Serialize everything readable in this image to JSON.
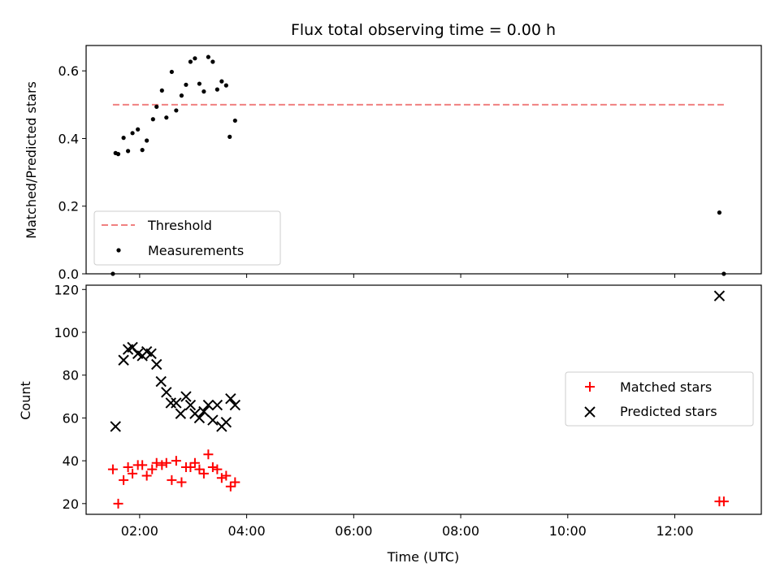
{
  "title": "Flux total observing time = 0.00 h",
  "chart_data": [
    {
      "type": "scatter",
      "ylabel": "Matched/Predicted stars",
      "xlim": [
        "01:00",
        "13:37"
      ],
      "ylim": [
        0,
        0.675
      ],
      "yticks": [
        0.0,
        0.2,
        0.4,
        0.6
      ],
      "ytick_labels": [
        "0.0",
        "0.2",
        "0.4",
        "0.6"
      ],
      "legend_position": "lower-left",
      "threshold": {
        "name": "Threshold",
        "value": 0.5,
        "x_range": [
          "01:30",
          "12:55"
        ],
        "color": "#f08080",
        "style": "dashed"
      },
      "series": [
        {
          "name": "Measurements",
          "marker": "dot",
          "color": "#000000",
          "points": [
            {
              "x": "01:30",
              "y": 0.0
            },
            {
              "x": "01:33",
              "y": 0.357
            },
            {
              "x": "01:36",
              "y": 0.354
            },
            {
              "x": "01:42",
              "y": 0.402
            },
            {
              "x": "01:47",
              "y": 0.363
            },
            {
              "x": "01:52",
              "y": 0.416
            },
            {
              "x": "01:58",
              "y": 0.427
            },
            {
              "x": "02:03",
              "y": 0.366
            },
            {
              "x": "02:08",
              "y": 0.394
            },
            {
              "x": "02:15",
              "y": 0.457
            },
            {
              "x": "02:19",
              "y": 0.494
            },
            {
              "x": "02:25",
              "y": 0.542
            },
            {
              "x": "02:30",
              "y": 0.462
            },
            {
              "x": "02:36",
              "y": 0.597
            },
            {
              "x": "02:41",
              "y": 0.483
            },
            {
              "x": "02:47",
              "y": 0.527
            },
            {
              "x": "02:52",
              "y": 0.559
            },
            {
              "x": "02:57",
              "y": 0.627
            },
            {
              "x": "03:02",
              "y": 0.637
            },
            {
              "x": "03:07",
              "y": 0.562
            },
            {
              "x": "03:12",
              "y": 0.539
            },
            {
              "x": "03:17",
              "y": 0.641
            },
            {
              "x": "03:22",
              "y": 0.627
            },
            {
              "x": "03:27",
              "y": 0.545
            },
            {
              "x": "03:32",
              "y": 0.569
            },
            {
              "x": "03:37",
              "y": 0.557
            },
            {
              "x": "03:41",
              "y": 0.405
            },
            {
              "x": "03:47",
              "y": 0.453
            },
            {
              "x": "12:50",
              "y": 0.181
            },
            {
              "x": "12:55",
              "y": 0.0
            }
          ]
        }
      ]
    },
    {
      "type": "scatter",
      "xlabel": "Time (UTC)",
      "ylabel": "Count",
      "xlim": [
        "01:00",
        "13:37"
      ],
      "ylim": [
        15,
        122
      ],
      "yticks": [
        20,
        40,
        60,
        80,
        100,
        120
      ],
      "xticks": [
        "02:00",
        "04:00",
        "06:00",
        "08:00",
        "10:00",
        "12:00"
      ],
      "legend_position": "center-right",
      "series": [
        {
          "name": "Matched stars",
          "marker": "plus",
          "color": "#ff0000",
          "points": [
            {
              "x": "01:30",
              "y": 36
            },
            {
              "x": "01:36",
              "y": 20
            },
            {
              "x": "01:42",
              "y": 31
            },
            {
              "x": "01:47",
              "y": 37
            },
            {
              "x": "01:52",
              "y": 34
            },
            {
              "x": "01:58",
              "y": 38
            },
            {
              "x": "02:03",
              "y": 38
            },
            {
              "x": "02:08",
              "y": 33
            },
            {
              "x": "02:14",
              "y": 36
            },
            {
              "x": "02:19",
              "y": 39
            },
            {
              "x": "02:25",
              "y": 38
            },
            {
              "x": "02:30",
              "y": 39
            },
            {
              "x": "02:36",
              "y": 31
            },
            {
              "x": "02:41",
              "y": 40
            },
            {
              "x": "02:47",
              "y": 30
            },
            {
              "x": "02:52",
              "y": 37
            },
            {
              "x": "02:57",
              "y": 37
            },
            {
              "x": "03:02",
              "y": 39
            },
            {
              "x": "03:07",
              "y": 36
            },
            {
              "x": "03:12",
              "y": 34
            },
            {
              "x": "03:17",
              "y": 43
            },
            {
              "x": "03:22",
              "y": 37
            },
            {
              "x": "03:27",
              "y": 36
            },
            {
              "x": "03:32",
              "y": 32
            },
            {
              "x": "03:37",
              "y": 33
            },
            {
              "x": "03:42",
              "y": 28
            },
            {
              "x": "03:47",
              "y": 30
            },
            {
              "x": "12:50",
              "y": 21
            },
            {
              "x": "12:55",
              "y": 21
            }
          ]
        },
        {
          "name": "Predicted stars",
          "marker": "x",
          "color": "#000000",
          "points": [
            {
              "x": "01:33",
              "y": 56
            },
            {
              "x": "01:42",
              "y": 87
            },
            {
              "x": "01:47",
              "y": 92
            },
            {
              "x": "01:52",
              "y": 93
            },
            {
              "x": "01:58",
              "y": 90
            },
            {
              "x": "02:03",
              "y": 89
            },
            {
              "x": "02:08",
              "y": 91
            },
            {
              "x": "02:13",
              "y": 90
            },
            {
              "x": "02:19",
              "y": 85
            },
            {
              "x": "02:24",
              "y": 77
            },
            {
              "x": "02:30",
              "y": 72
            },
            {
              "x": "02:35",
              "y": 67
            },
            {
              "x": "02:41",
              "y": 67
            },
            {
              "x": "02:46",
              "y": 62
            },
            {
              "x": "02:52",
              "y": 70
            },
            {
              "x": "02:57",
              "y": 66
            },
            {
              "x": "03:02",
              "y": 62
            },
            {
              "x": "03:07",
              "y": 60
            },
            {
              "x": "03:12",
              "y": 63
            },
            {
              "x": "03:17",
              "y": 66
            },
            {
              "x": "03:22",
              "y": 59
            },
            {
              "x": "03:27",
              "y": 66
            },
            {
              "x": "03:32",
              "y": 56
            },
            {
              "x": "03:37",
              "y": 58
            },
            {
              "x": "03:42",
              "y": 69
            },
            {
              "x": "03:47",
              "y": 66
            },
            {
              "x": "12:50",
              "y": 117
            }
          ]
        }
      ]
    }
  ]
}
